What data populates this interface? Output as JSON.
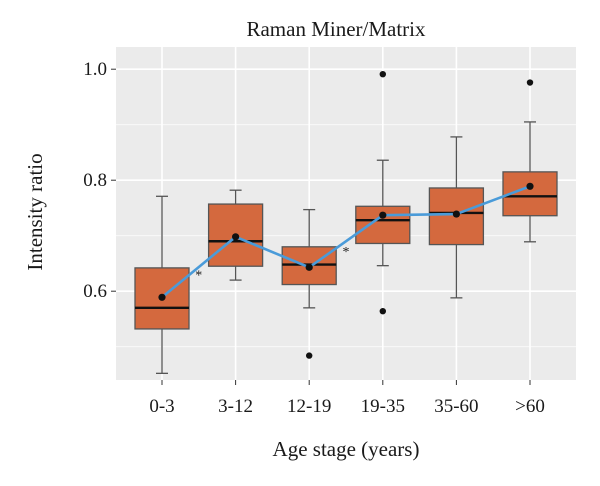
{
  "chart_data": {
    "type": "boxplot",
    "title": "Raman Miner/Matrix",
    "xlabel": "Age stage (years)",
    "ylabel": "Intensity ratio",
    "categories": [
      "0-3",
      "3-12",
      "12-19",
      "19-35",
      "35-60",
      ">60"
    ],
    "ylim": [
      0.44,
      1.04
    ],
    "y_ticks": [
      0.6,
      0.8,
      1.0
    ],
    "y_tick_labels": [
      "0.6",
      "0.8",
      "1.0"
    ],
    "grid": true,
    "boxes": [
      {
        "category": "0-3",
        "whisker_low": 0.452,
        "q1": 0.532,
        "median": 0.57,
        "q3": 0.642,
        "whisker_high": 0.771,
        "mean": 0.589,
        "outliers": []
      },
      {
        "category": "3-12",
        "whisker_low": 0.62,
        "q1": 0.645,
        "median": 0.69,
        "q3": 0.757,
        "whisker_high": 0.782,
        "mean": 0.698,
        "outliers": []
      },
      {
        "category": "12-19",
        "whisker_low": 0.57,
        "q1": 0.612,
        "median": 0.648,
        "q3": 0.68,
        "whisker_high": 0.747,
        "mean": 0.643,
        "outliers": [
          0.484
        ]
      },
      {
        "category": "19-35",
        "whisker_low": 0.646,
        "q1": 0.686,
        "median": 0.728,
        "q3": 0.753,
        "whisker_high": 0.836,
        "mean": 0.737,
        "outliers": [
          0.991,
          0.564
        ]
      },
      {
        "category": "35-60",
        "whisker_low": 0.588,
        "q1": 0.684,
        "median": 0.741,
        "q3": 0.786,
        "whisker_high": 0.878,
        "mean": 0.739,
        "outliers": []
      },
      {
        "category": ">60",
        "whisker_low": 0.689,
        "q1": 0.736,
        "median": 0.771,
        "q3": 0.815,
        "whisker_high": 0.905,
        "mean": 0.789,
        "outliers": [
          0.976
        ]
      }
    ],
    "significance_markers": [
      {
        "between": [
          "0-3",
          "3-12"
        ],
        "y": 0.63,
        "label": "*"
      },
      {
        "between": [
          "12-19",
          "19-35"
        ],
        "y": 0.672,
        "label": "*"
      }
    ],
    "colors": {
      "box_fill": "#d4693e",
      "box_border": "#555555",
      "median": "#111111",
      "mean_line": "#4a9bd9",
      "mean_point": "#111111",
      "panel_bg": "#ebebeb",
      "grid": "#ffffff"
    }
  }
}
